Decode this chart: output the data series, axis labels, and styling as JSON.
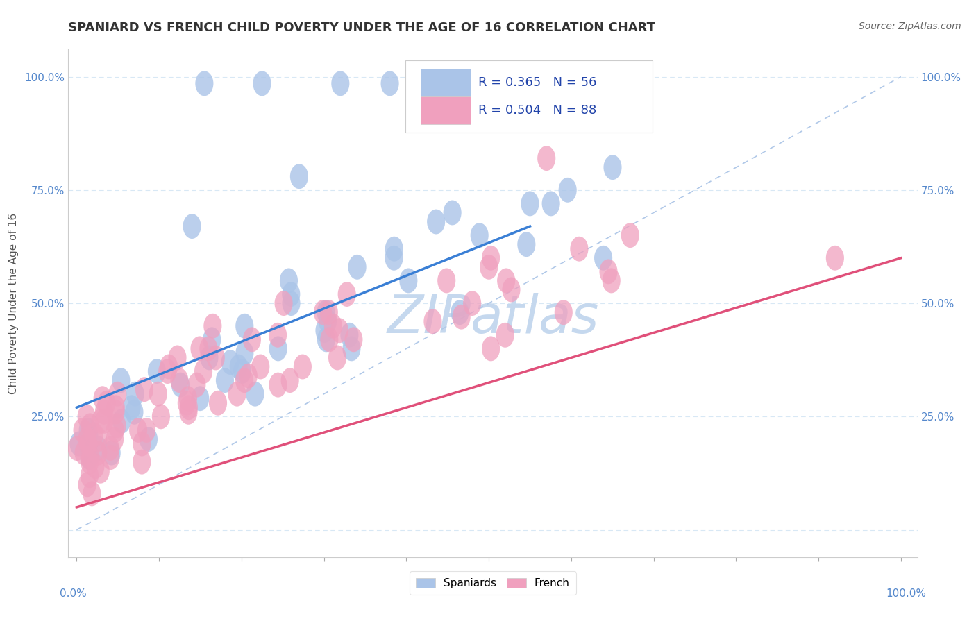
{
  "title": "SPANIARD VS FRENCH CHILD POVERTY UNDER THE AGE OF 16 CORRELATION CHART",
  "source": "Source: ZipAtlas.com",
  "ylabel": "Child Poverty Under the Age of 16",
  "spaniards_R": 0.365,
  "spaniards_N": 56,
  "french_R": 0.504,
  "french_N": 88,
  "spaniard_color": "#aac4e8",
  "french_color": "#f0a0be",
  "spaniard_line_color": "#3a7fd5",
  "french_line_color": "#e0507a",
  "ref_line_color": "#b0c8e8",
  "grid_color": "#d8e8f5",
  "watermark_color": "#c5d8ee",
  "bg_color": "#ffffff",
  "ytick_color": "#5588cc",
  "title_color": "#333333",
  "source_color": "#666666",
  "legend_text_color": "#2244aa"
}
